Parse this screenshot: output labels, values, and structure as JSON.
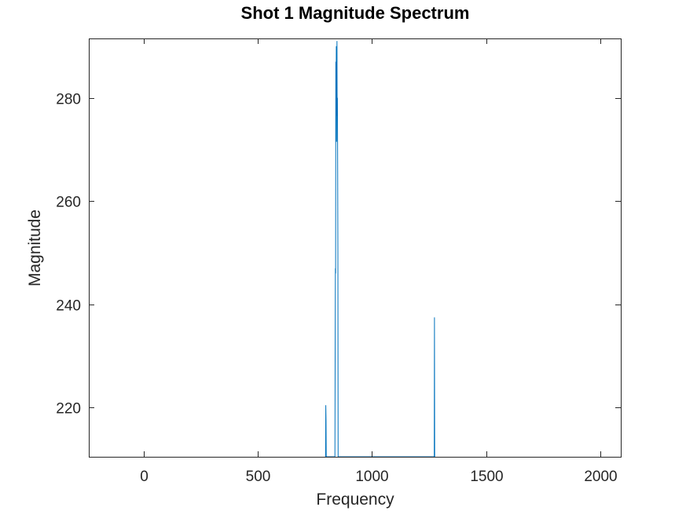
{
  "chart_data": {
    "type": "line",
    "title": "Shot 1 Magnitude Spectrum",
    "xlabel": "Frequency",
    "ylabel": "Magnitude",
    "xlim": [
      -240,
      2090
    ],
    "ylim": [
      210.5,
      291.5
    ],
    "xticks": [
      0,
      500,
      1000,
      1500,
      2000
    ],
    "xtick_labels": [
      "0",
      "500",
      "1000",
      "1500",
      "2000"
    ],
    "yticks": [
      220,
      240,
      260,
      280
    ],
    "ytick_labels": [
      "220",
      "240",
      "260",
      "280"
    ],
    "grid": false,
    "line_color": "#0072BD",
    "series": [
      {
        "x": [
          797,
          798,
          799,
          800,
          838,
          839,
          840,
          841,
          842,
          843,
          844,
          845,
          846,
          847,
          848,
          849,
          850,
          851,
          852,
          853,
          854,
          1273,
          1274,
          1275
        ],
        "y": [
          210.5,
          220.5,
          217.5,
          210.5,
          210.5,
          230.0,
          247.0,
          246.0,
          287.0,
          276.0,
          290.0,
          271.5,
          284.0,
          291.0,
          276.5,
          280.0,
          266.0,
          250.0,
          210.5,
          210.5,
          210.5,
          210.5,
          237.5,
          210.5
        ]
      }
    ]
  }
}
